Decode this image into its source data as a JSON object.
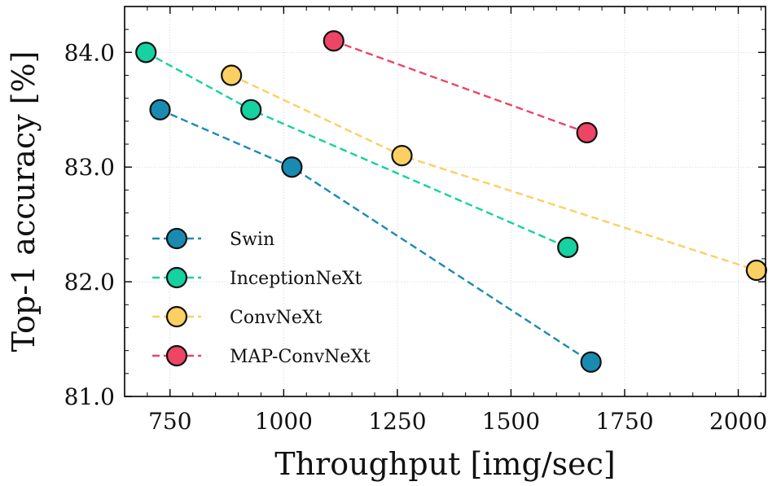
{
  "chart_data": {
    "type": "line",
    "title": "",
    "xlabel": "Throughput [img/sec]",
    "ylabel": "Top-1 accuracy [%]",
    "xlim": [
      650,
      2060
    ],
    "ylim": [
      81.0,
      84.4
    ],
    "xticks": [
      750,
      1000,
      1250,
      1500,
      1750,
      2000
    ],
    "yticks": [
      81.0,
      82.0,
      83.0,
      84.0
    ],
    "xtick_labels": [
      "750",
      "1000",
      "1250",
      "1500",
      "1750",
      "2000"
    ],
    "ytick_labels": [
      "81.0",
      "82.0",
      "83.0",
      "84.0"
    ],
    "grid": true,
    "legend_position": "lower-left",
    "series": [
      {
        "name": "Swin",
        "color": "#1a8bb0",
        "points": [
          [
            728,
            83.5
          ],
          [
            1018,
            83.0
          ],
          [
            1676,
            81.3
          ]
        ]
      },
      {
        "name": "InceptionNeXt",
        "color": "#16d1a0",
        "points": [
          [
            697,
            84.0
          ],
          [
            928,
            83.5
          ],
          [
            1625,
            82.3
          ]
        ]
      },
      {
        "name": "ConvNeXt",
        "color": "#fccf62",
        "points": [
          [
            885,
            83.8
          ],
          [
            1260,
            83.1
          ],
          [
            2040,
            82.1
          ]
        ]
      },
      {
        "name": "MAP-ConvNeXt",
        "color": "#ee4466",
        "points": [
          [
            1110,
            84.1
          ],
          [
            1667,
            83.3
          ]
        ]
      }
    ]
  }
}
